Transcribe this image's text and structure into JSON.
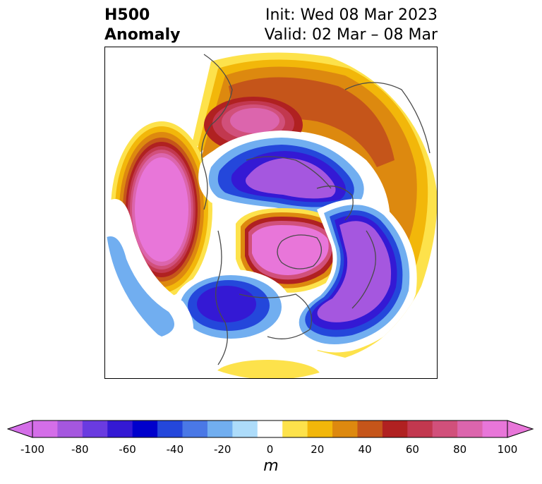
{
  "title": {
    "left_line1": "H500",
    "left_line2": "Anomaly",
    "right_line1": "Init: Wed 08 Mar 2023",
    "right_line2": "Valid: 02 Mar – 08 Mar"
  },
  "colorbar": {
    "unit": "m",
    "ticks": [
      "-100",
      "-80",
      "-60",
      "-40",
      "-20",
      "0",
      "20",
      "40",
      "60",
      "80",
      "100"
    ],
    "levels": [
      -100,
      -90,
      -80,
      -70,
      -60,
      -50,
      -40,
      -30,
      -20,
      -10,
      10,
      20,
      30,
      40,
      50,
      60,
      70,
      80,
      90,
      100
    ],
    "colors": [
      "#d46ee8",
      "#a557df",
      "#6a3be0",
      "#3419d4",
      "#0000cc",
      "#2447db",
      "#4a78e6",
      "#71aef0",
      "#addcfa",
      "#ffffff",
      "#fde24b",
      "#f2b70a",
      "#dd890f",
      "#c5551a",
      "#b02121",
      "#c2384f",
      "#d1507b",
      "#dc65ad",
      "#e876d9"
    ],
    "under_color": "#d46ee8",
    "over_color": "#e876d9"
  },
  "map": {
    "projection": "north-polar-stereographic",
    "field": "500 hPa geopotential height anomaly",
    "features": [
      {
        "name": "north-pacific-ridge",
        "sign": "positive",
        "peak_m": 100
      },
      {
        "name": "canadian-arctic-ridge",
        "sign": "positive",
        "peak_m": 100
      },
      {
        "name": "siberian-ridge",
        "sign": "positive",
        "peak_m": 70
      },
      {
        "name": "scandinavia-trough",
        "sign": "negative",
        "peak_m": -100
      },
      {
        "name": "north-atlantic-trough",
        "sign": "negative",
        "peak_m": -100
      },
      {
        "name": "western-us-trough",
        "sign": "negative",
        "peak_m": -80
      }
    ]
  }
}
